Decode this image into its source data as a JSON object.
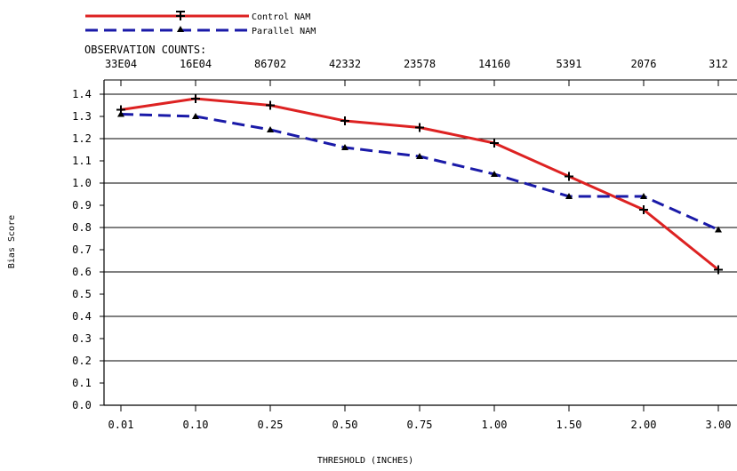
{
  "chart_data": {
    "type": "line",
    "legend": {
      "placement": "top-left",
      "entries": [
        "Control NAM",
        "Parallel NAM"
      ]
    },
    "observation_counts": {
      "label": "OBSERVATION COUNTS:",
      "values": [
        "33E04",
        "16E04",
        "86702",
        "42332",
        "23578",
        "14160",
        "5391",
        "2076",
        "312"
      ]
    },
    "categories": [
      "0.01",
      "0.10",
      "0.25",
      "0.50",
      "0.75",
      "1.00",
      "1.50",
      "2.00",
      "3.00"
    ],
    "series": [
      {
        "name": "Control NAM",
        "color": "#dd2222",
        "marker": "cross",
        "style": "solid",
        "values": [
          1.33,
          1.38,
          1.35,
          1.28,
          1.25,
          1.18,
          1.03,
          0.88,
          0.61
        ]
      },
      {
        "name": "Parallel NAM",
        "color": "#1a1aa8",
        "marker": "triangle",
        "style": "dashed",
        "values": [
          1.31,
          1.3,
          1.24,
          1.16,
          1.12,
          1.04,
          0.94,
          0.94,
          0.79
        ]
      }
    ],
    "ylabel": "Bias Score",
    "xlabel": "THRESHOLD (INCHES)",
    "ylim": [
      0.0,
      1.4
    ],
    "yticks": [
      "0.0",
      "0.1",
      "0.2",
      "0.3",
      "0.4",
      "0.5",
      "0.6",
      "0.7",
      "0.8",
      "0.9",
      "1.0",
      "1.1",
      "1.2",
      "1.3",
      "1.4"
    ],
    "gridlines_at": [
      0.0,
      0.2,
      0.4,
      0.6,
      0.8,
      1.0,
      1.2,
      1.4
    ],
    "grid": true
  }
}
